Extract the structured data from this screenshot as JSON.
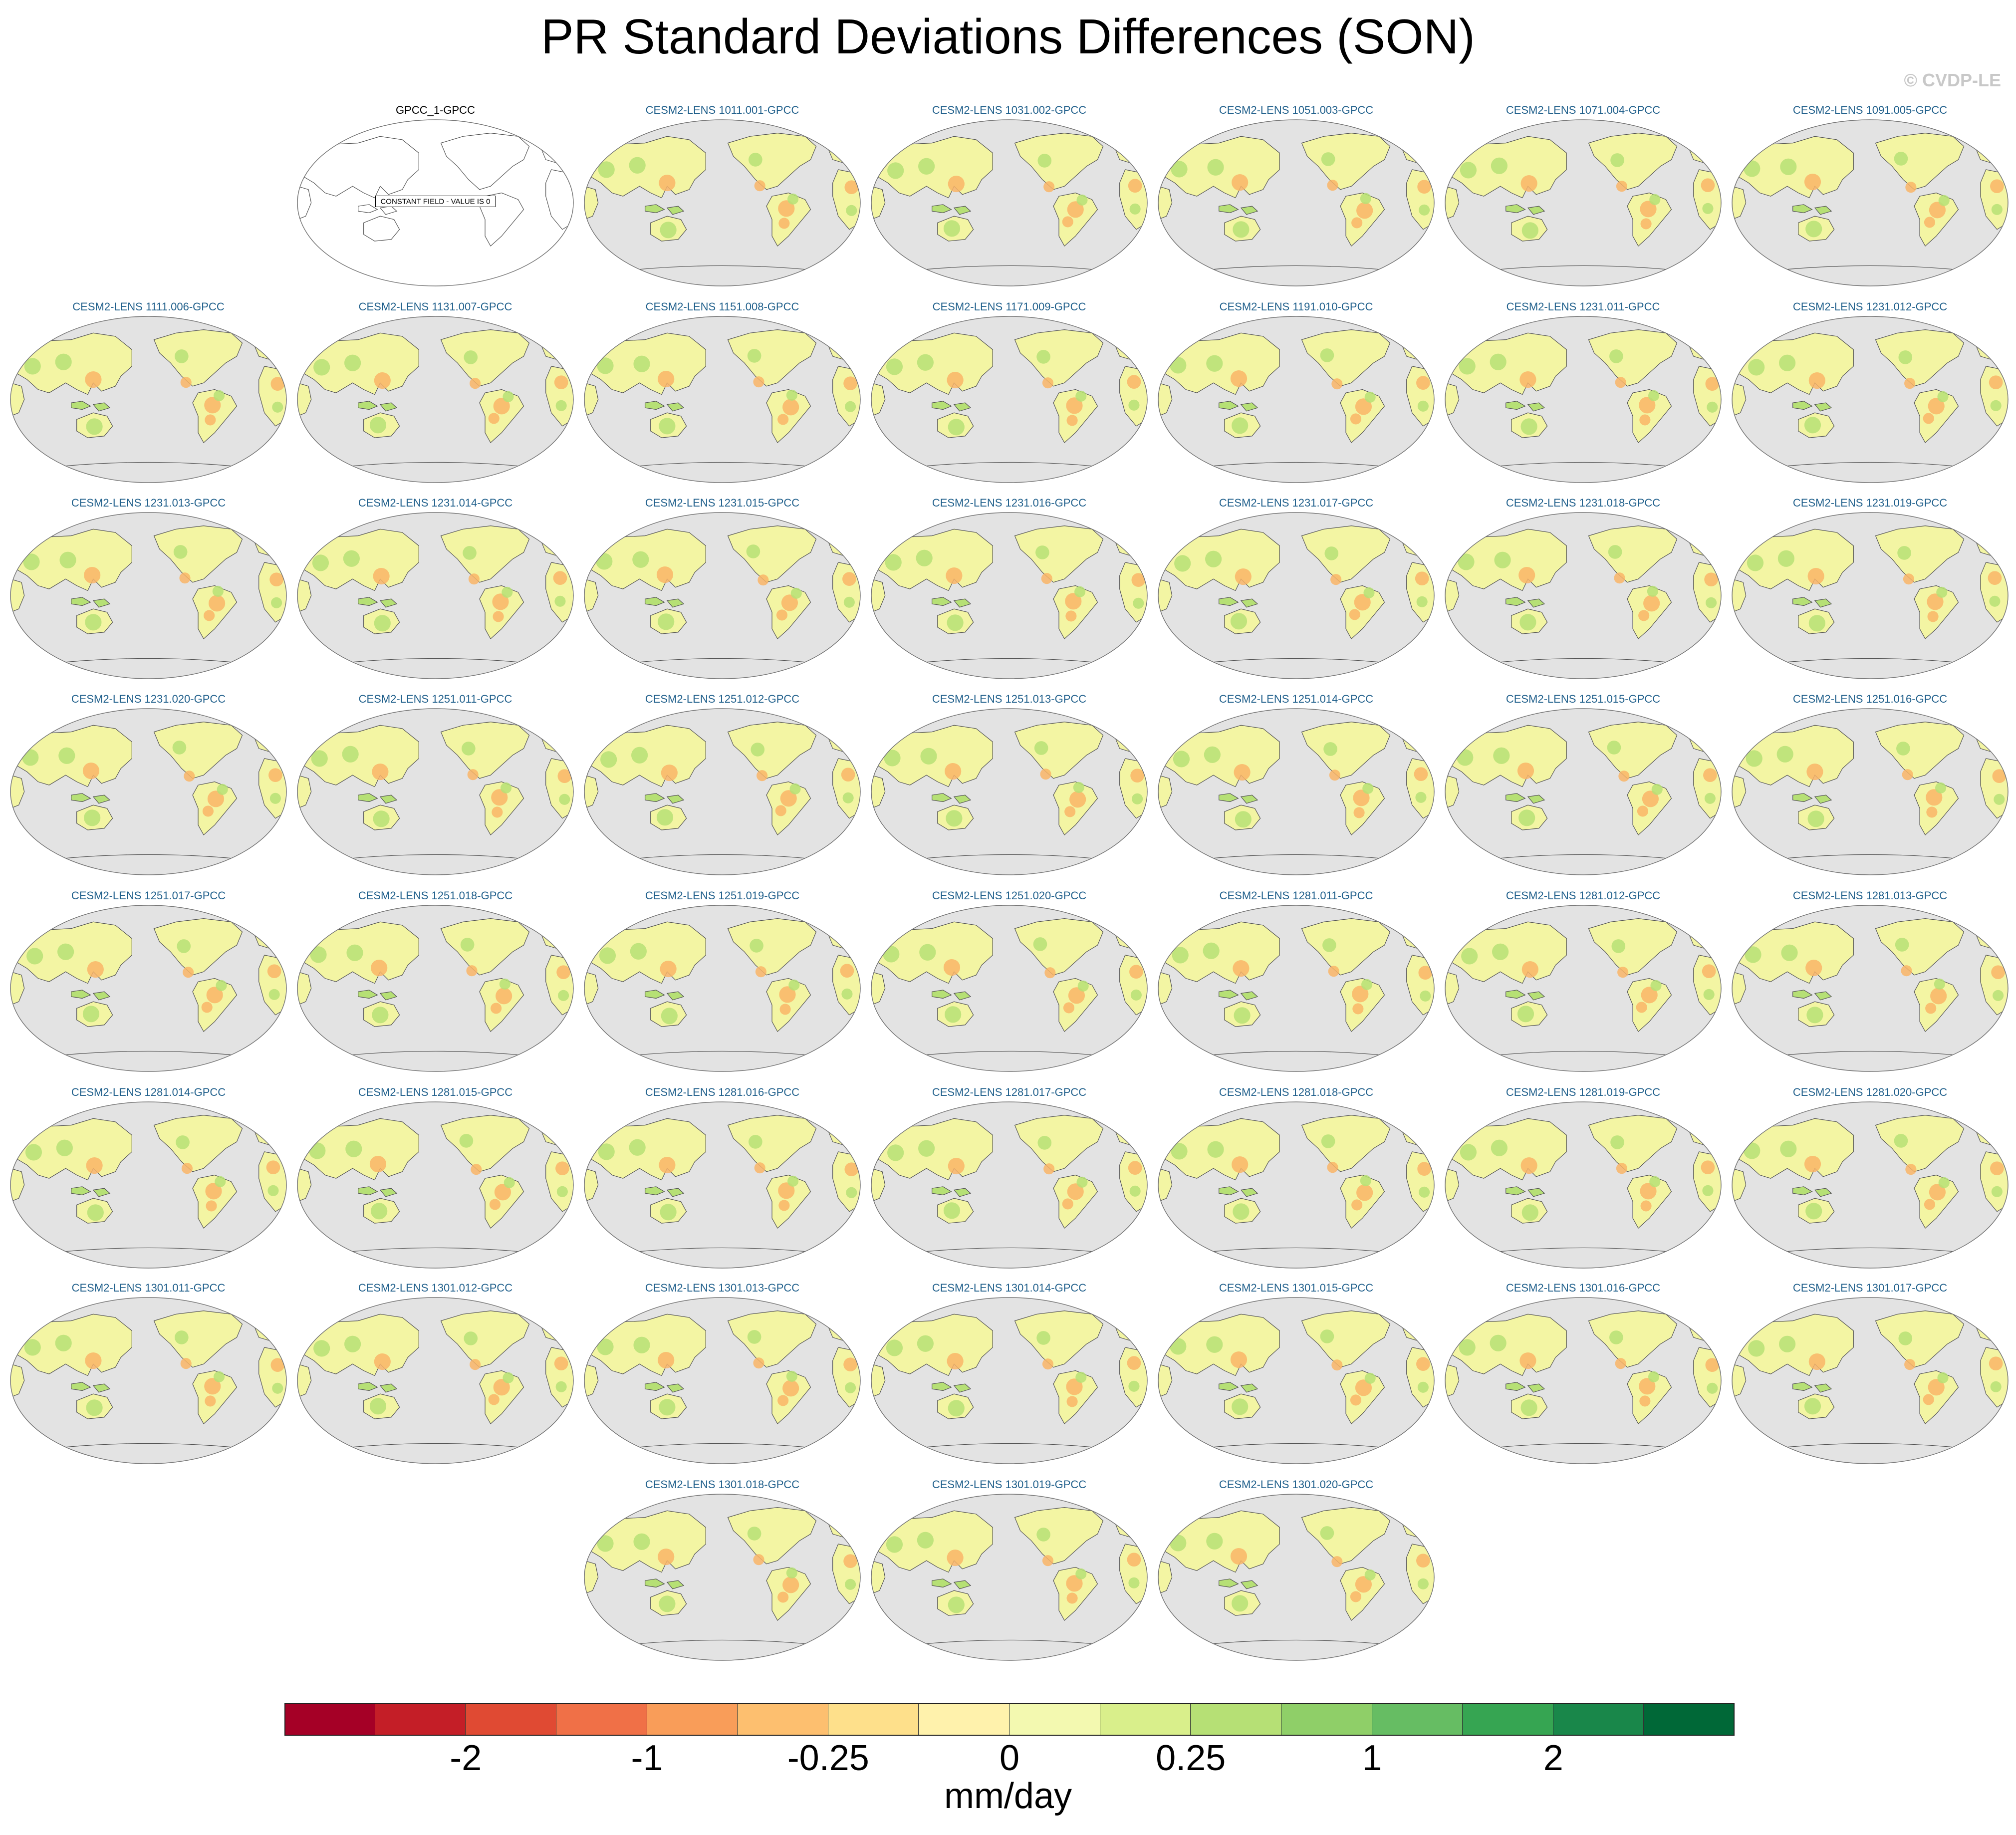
{
  "title": "PR Standard Deviations Differences (SON)",
  "watermark": "© CVDP-LE",
  "obs_panel": {
    "label": "GPCC_1-GPCC",
    "note": "CONSTANT FIELD - VALUE IS 0"
  },
  "model_panels": [
    "CESM2-LENS 1011.001-GPCC",
    "CESM2-LENS 1031.002-GPCC",
    "CESM2-LENS 1051.003-GPCC",
    "CESM2-LENS 1071.004-GPCC",
    "CESM2-LENS 1091.005-GPCC",
    "CESM2-LENS 1111.006-GPCC",
    "CESM2-LENS 1131.007-GPCC",
    "CESM2-LENS 1151.008-GPCC",
    "CESM2-LENS 1171.009-GPCC",
    "CESM2-LENS 1191.010-GPCC",
    "CESM2-LENS 1231.011-GPCC",
    "CESM2-LENS 1231.012-GPCC",
    "CESM2-LENS 1231.013-GPCC",
    "CESM2-LENS 1231.014-GPCC",
    "CESM2-LENS 1231.015-GPCC",
    "CESM2-LENS 1231.016-GPCC",
    "CESM2-LENS 1231.017-GPCC",
    "CESM2-LENS 1231.018-GPCC",
    "CESM2-LENS 1231.019-GPCC",
    "CESM2-LENS 1231.020-GPCC",
    "CESM2-LENS 1251.011-GPCC",
    "CESM2-LENS 1251.012-GPCC",
    "CESM2-LENS 1251.013-GPCC",
    "CESM2-LENS 1251.014-GPCC",
    "CESM2-LENS 1251.015-GPCC",
    "CESM2-LENS 1251.016-GPCC",
    "CESM2-LENS 1251.017-GPCC",
    "CESM2-LENS 1251.018-GPCC",
    "CESM2-LENS 1251.019-GPCC",
    "CESM2-LENS 1251.020-GPCC",
    "CESM2-LENS 1281.011-GPCC",
    "CESM2-LENS 1281.012-GPCC",
    "CESM2-LENS 1281.013-GPCC",
    "CESM2-LENS 1281.014-GPCC",
    "CESM2-LENS 1281.015-GPCC",
    "CESM2-LENS 1281.016-GPCC",
    "CESM2-LENS 1281.017-GPCC",
    "CESM2-LENS 1281.018-GPCC",
    "CESM2-LENS 1281.019-GPCC",
    "CESM2-LENS 1281.020-GPCC",
    "CESM2-LENS 1301.011-GPCC",
    "CESM2-LENS 1301.012-GPCC",
    "CESM2-LENS 1301.013-GPCC",
    "CESM2-LENS 1301.014-GPCC",
    "CESM2-LENS 1301.015-GPCC",
    "CESM2-LENS 1301.016-GPCC",
    "CESM2-LENS 1301.017-GPCC",
    "CESM2-LENS 1301.018-GPCC",
    "CESM2-LENS 1301.019-GPCC",
    "CESM2-LENS 1301.020-GPCC"
  ],
  "colorbar": {
    "colors": [
      "#a50026",
      "#c41e27",
      "#e04a33",
      "#f07047",
      "#f99d59",
      "#fdbf6f",
      "#fee08b",
      "#fff2ac",
      "#f3f9b0",
      "#d9ef8b",
      "#b6e075",
      "#8fcf68",
      "#66bd63",
      "#36a552",
      "#19874a",
      "#006837"
    ],
    "labels": [
      "-2",
      "-1",
      "-0.25",
      "0",
      "0.25",
      "1",
      "2"
    ],
    "units": "mm/day"
  },
  "map_colors": {
    "ocean": "#e3e3e3",
    "land_base": "#f3f5a3",
    "wet": "#b6e075",
    "dry": "#f9b567",
    "coast": "#555555"
  }
}
